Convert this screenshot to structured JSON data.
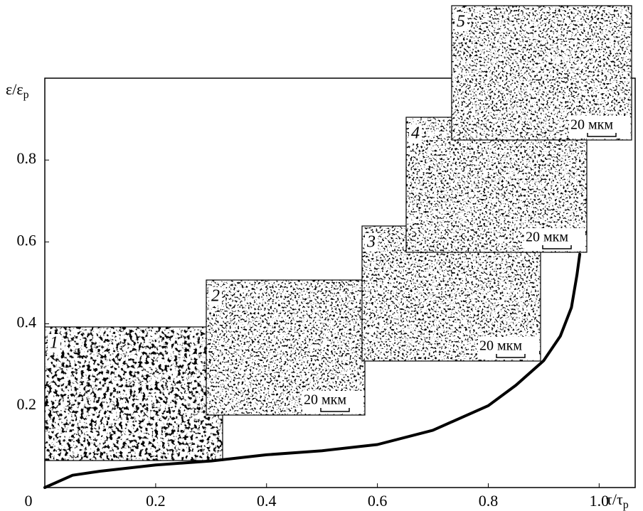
{
  "chart_data": {
    "type": "line",
    "xlabel": {
      "main": "τ/τ",
      "sub": "p"
    },
    "ylabel": {
      "main": "ε/ε",
      "sub": "p"
    },
    "x": [
      0,
      0.05,
      0.1,
      0.2,
      0.3,
      0.4,
      0.5,
      0.6,
      0.7,
      0.8,
      0.85,
      0.9,
      0.93,
      0.95,
      0.96,
      0.965
    ],
    "values": [
      0,
      0.03,
      0.04,
      0.055,
      0.065,
      0.08,
      0.09,
      0.105,
      0.14,
      0.2,
      0.25,
      0.31,
      0.37,
      0.44,
      0.52,
      0.57
    ],
    "color": "#000000",
    "xlim": [
      0,
      1.065
    ],
    "ylim": [
      0,
      1.0
    ],
    "xticks": [
      0,
      0.2,
      0.4,
      0.6,
      0.8,
      {
        "value": 1,
        "label": "1.0"
      }
    ],
    "yticks": [
      0.2,
      0.4,
      0.6,
      0.8
    ],
    "insets": [
      {
        "label": "1"
      },
      {
        "label": "2",
        "scale_bar": "20 мкм"
      },
      {
        "label": "3",
        "scale_bar": "20 мкм"
      },
      {
        "label": "4",
        "scale_bar": "20 мкм"
      },
      {
        "label": "5",
        "scale_bar": "20 мкм"
      }
    ]
  }
}
